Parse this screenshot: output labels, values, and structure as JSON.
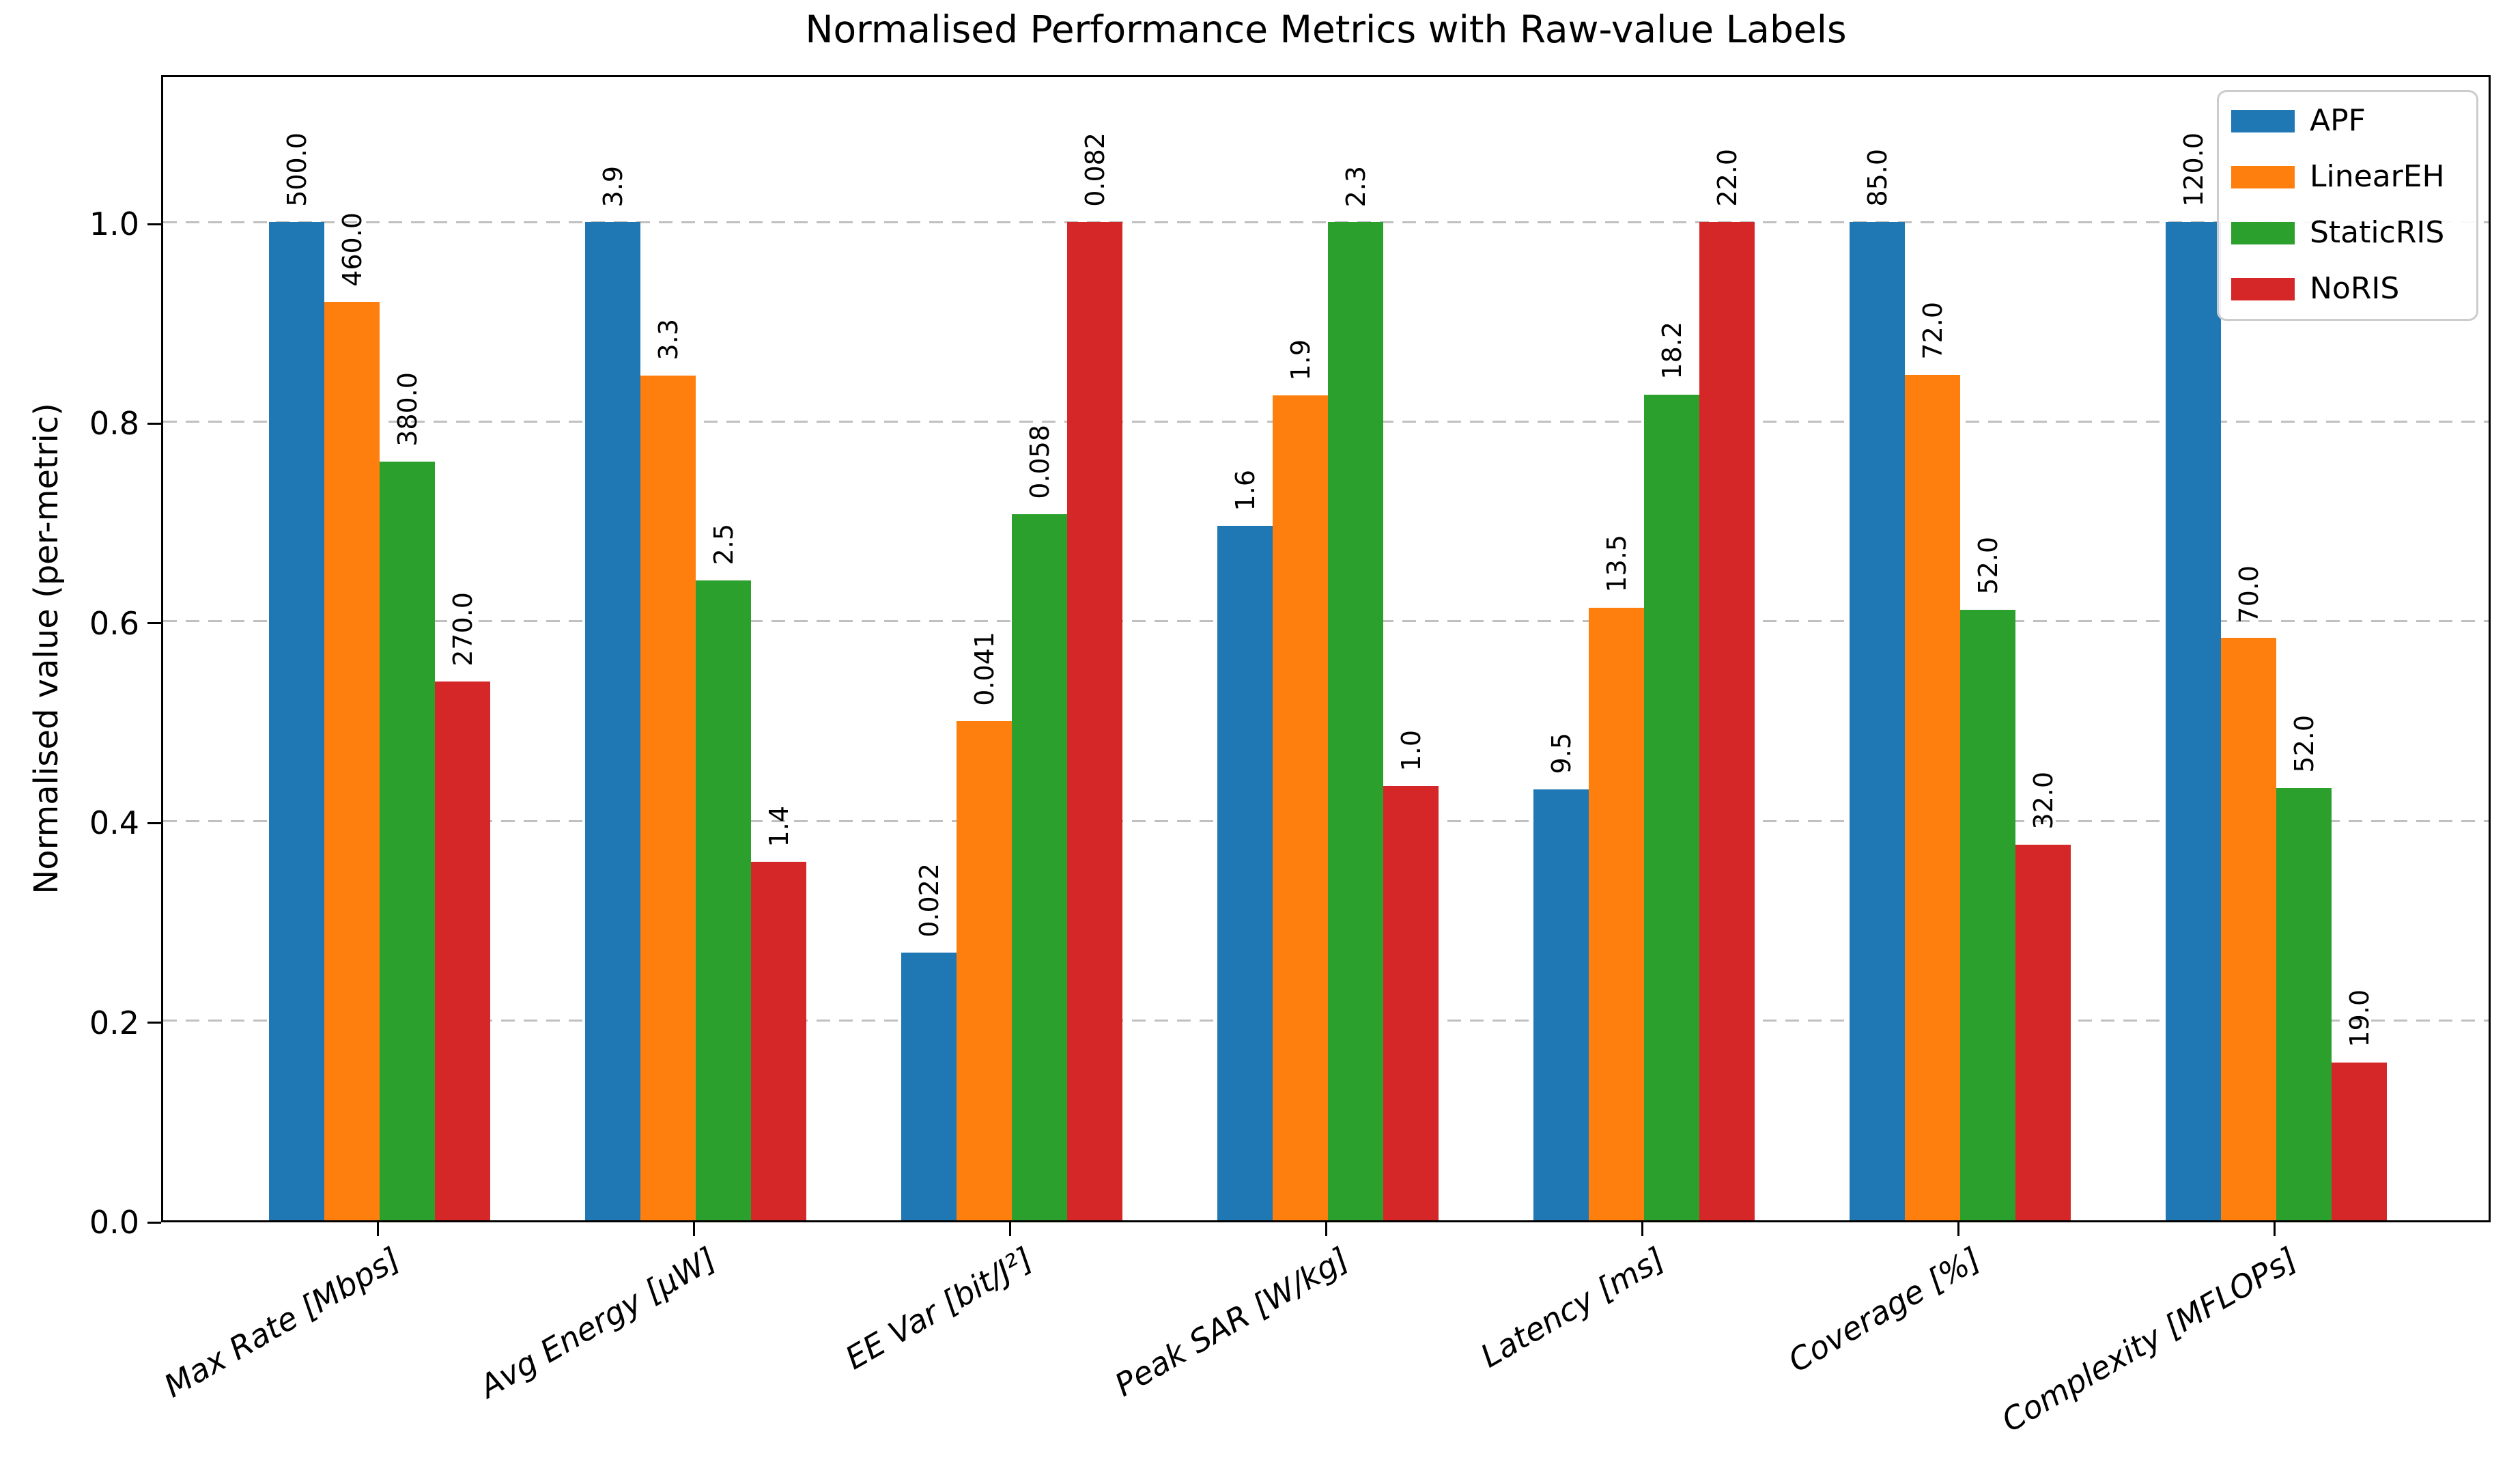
{
  "title": "Normalised Performance Metrics with Raw-value Labels",
  "y_axis": {
    "label": "Normalised value (per-metric)",
    "ticks": [
      "0.0",
      "0.2",
      "0.4",
      "0.6",
      "0.8",
      "1.0"
    ]
  },
  "legend": {
    "entries": [
      "APF",
      "LinearEH",
      "StaticRIS",
      "NoRIS"
    ]
  },
  "colors": {
    "APF": "#1f77b4",
    "LinearEH": "#ff7f0e",
    "StaticRIS": "#2ca02c",
    "NoRIS": "#d62728"
  },
  "chart_data": {
    "type": "bar",
    "title": "Normalised Performance Metrics with Raw-value Labels",
    "ylabel": "Normalised value (per-metric)",
    "xlabel": "",
    "ylim": [
      0,
      1.15
    ],
    "y_ticks": [
      0.0,
      0.2,
      0.4,
      0.6,
      0.8,
      1.0
    ],
    "grid": "horizontal dashed gridlines at each y tick",
    "legend_position": "upper right",
    "normalisation": "each metric scaled by its per-metric maximum; bar labels show raw values",
    "categories": [
      "Max Rate [Mbps]",
      "Avg Energy [µW]",
      "EE Var [bit/J²]",
      "Peak SAR [W/kg]",
      "Latency [ms]",
      "Coverage [%]",
      "Complexity [MFLOPs]"
    ],
    "series": [
      {
        "name": "APF",
        "color": "#1f77b4",
        "raw_values": [
          500.0,
          3.9,
          0.022,
          1.6,
          9.5,
          85.0,
          120.0
        ],
        "bar_labels": [
          "500.0",
          "3.9",
          "0.022",
          "1.6",
          "9.5",
          "85.0",
          "120.0"
        ],
        "normalised_values": [
          1.0,
          1.0,
          0.268,
          0.696,
          0.432,
          1.0,
          1.0
        ]
      },
      {
        "name": "LinearEH",
        "color": "#ff7f0e",
        "raw_values": [
          460.0,
          3.3,
          0.041,
          1.9,
          13.5,
          72.0,
          70.0
        ],
        "bar_labels": [
          "460.0",
          "3.3",
          "0.041",
          "1.9",
          "13.5",
          "72.0",
          "70.0"
        ],
        "normalised_values": [
          0.92,
          0.846,
          0.5,
          0.826,
          0.614,
          0.847,
          0.583
        ]
      },
      {
        "name": "StaticRIS",
        "color": "#2ca02c",
        "raw_values": [
          380.0,
          2.5,
          0.058,
          2.3,
          18.2,
          52.0,
          52.0
        ],
        "bar_labels": [
          "380.0",
          "2.5",
          "0.058",
          "2.3",
          "18.2",
          "52.0",
          "52.0"
        ],
        "normalised_values": [
          0.76,
          0.641,
          0.707,
          1.0,
          0.827,
          0.612,
          0.433
        ]
      },
      {
        "name": "NoRIS",
        "color": "#d62728",
        "raw_values": [
          270.0,
          1.4,
          0.082,
          1.0,
          22.0,
          32.0,
          19.0
        ],
        "bar_labels": [
          "270.0",
          "1.4",
          "0.082",
          "1.0",
          "22.0",
          "32.0",
          "19.0"
        ],
        "normalised_values": [
          0.54,
          0.359,
          1.0,
          0.435,
          1.0,
          0.376,
          0.158
        ]
      }
    ]
  }
}
